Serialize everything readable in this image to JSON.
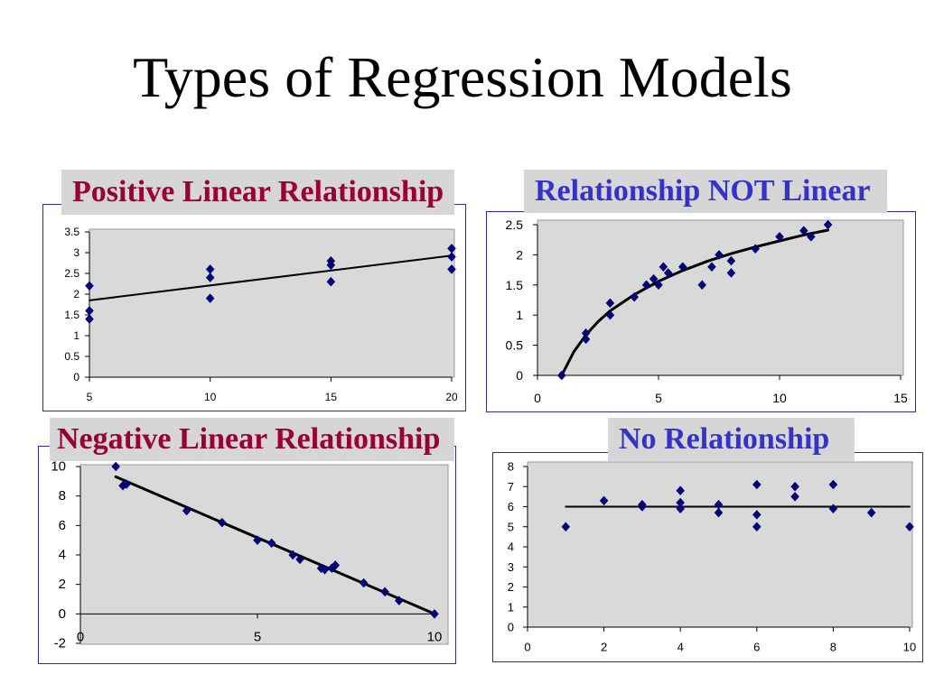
{
  "slide": {
    "title": "Types of Regression Models"
  },
  "colors": {
    "marker": "#000080",
    "trendline": "#000000",
    "plot_area": "#d9d9d9"
  },
  "chart_data": [
    {
      "type": "scatter",
      "title": "Positive Linear Relationship",
      "title_color": "#990033",
      "x": [
        5,
        5,
        5,
        10,
        10,
        10,
        15,
        15,
        15,
        20,
        20,
        20
      ],
      "y": [
        2.2,
        1.6,
        1.4,
        2.6,
        2.4,
        1.9,
        2.8,
        2.7,
        2.3,
        3.1,
        2.9,
        2.6
      ],
      "trendline": {
        "x": [
          5,
          20
        ],
        "y": [
          1.85,
          2.93
        ]
      },
      "xlim": [
        5,
        20
      ],
      "ylim": [
        0,
        3.5
      ],
      "xticks": [
        "5",
        "10",
        "15",
        "20"
      ],
      "yticks": [
        "0",
        "0.5",
        "1",
        "1.5",
        "2",
        "2.5",
        "3",
        "3.5"
      ],
      "grid": false,
      "legend": false
    },
    {
      "type": "scatter",
      "title": "Relationship NOT Linear",
      "title_color": "#3333cc",
      "x": [
        1,
        2,
        2,
        3,
        3,
        4,
        4.5,
        4.8,
        5,
        5.2,
        5.4,
        6,
        6.8,
        7.2,
        7.5,
        8,
        8,
        9,
        10,
        11,
        11.3,
        12
      ],
      "y": [
        0,
        0.7,
        0.6,
        1.2,
        1.0,
        1.3,
        1.5,
        1.6,
        1.5,
        1.8,
        1.7,
        1.8,
        1.5,
        1.8,
        2.0,
        1.9,
        1.7,
        2.1,
        2.3,
        2.4,
        2.3,
        2.5
      ],
      "trendline": {
        "x": [
          1,
          1.5,
          2,
          2.5,
          3,
          4,
          5,
          6,
          7,
          8,
          9,
          10,
          11,
          12
        ],
        "y": [
          0,
          0.39,
          0.67,
          0.89,
          1.07,
          1.34,
          1.56,
          1.74,
          1.89,
          2.02,
          2.13,
          2.23,
          2.33,
          2.41
        ]
      },
      "xlim": [
        0,
        15
      ],
      "ylim": [
        0,
        2.5
      ],
      "xticks": [
        "0",
        "5",
        "10",
        "15"
      ],
      "yticks": [
        "0",
        "0.5",
        "1",
        "1.5",
        "2",
        "2.5"
      ],
      "grid": false,
      "legend": false
    },
    {
      "type": "scatter",
      "title": "Negative Linear Relationship",
      "title_color": "#990033",
      "x": [
        1,
        1.2,
        1.3,
        3,
        4,
        5,
        5.4,
        6,
        6.2,
        6.8,
        6.9,
        7.1,
        7.2,
        8,
        8.6,
        9,
        10
      ],
      "y": [
        10,
        8.7,
        8.8,
        7.0,
        6.2,
        5.0,
        4.8,
        4.0,
        3.7,
        3.1,
        3.0,
        3.1,
        3.3,
        2.1,
        1.5,
        0.9,
        0
      ],
      "trendline": {
        "x": [
          1,
          10
        ],
        "y": [
          9.3,
          0
        ]
      },
      "xlim": [
        0,
        10
      ],
      "ylim": [
        -2,
        10
      ],
      "xticks": [
        "0",
        "5",
        "10"
      ],
      "yticks": [
        "-2",
        "0",
        "2",
        "4",
        "6",
        "8",
        "10"
      ],
      "grid": false,
      "legend": false
    },
    {
      "type": "scatter",
      "title": "No Relationship",
      "title_color": "#3333cc",
      "x": [
        1,
        2,
        3,
        3,
        4,
        4,
        4,
        5,
        5,
        6,
        6,
        6,
        7,
        7,
        8,
        8,
        9,
        10
      ],
      "y": [
        5.0,
        6.3,
        6.0,
        6.1,
        6.8,
        6.2,
        5.9,
        6.1,
        5.7,
        7.1,
        5.6,
        5.0,
        7.0,
        6.5,
        7.1,
        5.9,
        5.7,
        5.0
      ],
      "trendline": {
        "x": [
          1,
          10
        ],
        "y": [
          6.0,
          6.0
        ]
      },
      "xlim": [
        0,
        10
      ],
      "ylim": [
        0,
        8
      ],
      "xticks": [
        "0",
        "2",
        "4",
        "6",
        "8",
        "10"
      ],
      "yticks": [
        "0",
        "1",
        "2",
        "3",
        "4",
        "5",
        "6",
        "7",
        "8"
      ],
      "grid": false,
      "legend": false
    }
  ]
}
